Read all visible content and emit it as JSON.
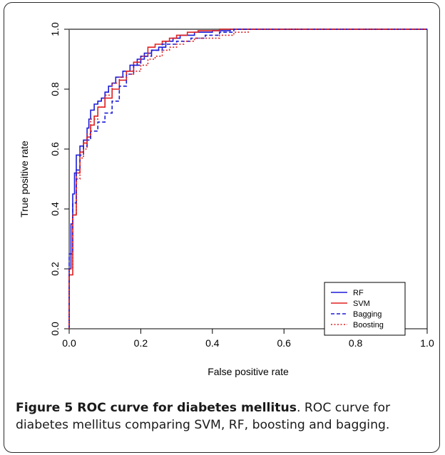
{
  "chart_data": {
    "type": "line",
    "title": "",
    "xlabel": "False positive rate",
    "ylabel": "True positive rate",
    "xlim": [
      0,
      1
    ],
    "ylim": [
      0,
      1
    ],
    "xticks": [
      "0.0",
      "0.2",
      "0.4",
      "0.6",
      "0.8",
      "1.0"
    ],
    "yticks": [
      "0.0",
      "0.2",
      "0.4",
      "0.6",
      "0.8",
      "1.0"
    ],
    "grid": false,
    "legend_position": "bottom-right",
    "series": [
      {
        "name": "RF",
        "color": "#1c1cd8",
        "dash": "solid",
        "points": [
          [
            0,
            0
          ],
          [
            0.005,
            0.2
          ],
          [
            0.01,
            0.35
          ],
          [
            0.015,
            0.45
          ],
          [
            0.02,
            0.52
          ],
          [
            0.03,
            0.58
          ],
          [
            0.04,
            0.61
          ],
          [
            0.05,
            0.63
          ],
          [
            0.055,
            0.67
          ],
          [
            0.06,
            0.7
          ],
          [
            0.07,
            0.73
          ],
          [
            0.08,
            0.75
          ],
          [
            0.09,
            0.76
          ],
          [
            0.1,
            0.77
          ],
          [
            0.11,
            0.79
          ],
          [
            0.12,
            0.81
          ],
          [
            0.13,
            0.82
          ],
          [
            0.15,
            0.84
          ],
          [
            0.17,
            0.86
          ],
          [
            0.19,
            0.88
          ],
          [
            0.21,
            0.9
          ],
          [
            0.23,
            0.92
          ],
          [
            0.25,
            0.93
          ],
          [
            0.27,
            0.94
          ],
          [
            0.29,
            0.96
          ],
          [
            0.31,
            0.97
          ],
          [
            0.35,
            0.98
          ],
          [
            0.4,
            0.99
          ],
          [
            0.45,
            0.995
          ],
          [
            0.5,
            1.0
          ],
          [
            1.0,
            1.0
          ]
        ]
      },
      {
        "name": "SVM",
        "color": "#e02020",
        "dash": "solid",
        "points": [
          [
            0,
            0
          ],
          [
            0.01,
            0.18
          ],
          [
            0.02,
            0.38
          ],
          [
            0.03,
            0.52
          ],
          [
            0.04,
            0.59
          ],
          [
            0.05,
            0.62
          ],
          [
            0.06,
            0.64
          ],
          [
            0.07,
            0.68
          ],
          [
            0.08,
            0.71
          ],
          [
            0.1,
            0.74
          ],
          [
            0.12,
            0.77
          ],
          [
            0.14,
            0.8
          ],
          [
            0.16,
            0.83
          ],
          [
            0.18,
            0.86
          ],
          [
            0.2,
            0.89
          ],
          [
            0.22,
            0.91
          ],
          [
            0.24,
            0.94
          ],
          [
            0.26,
            0.95
          ],
          [
            0.28,
            0.96
          ],
          [
            0.3,
            0.97
          ],
          [
            0.33,
            0.98
          ],
          [
            0.36,
            0.99
          ],
          [
            0.42,
            0.995
          ],
          [
            0.5,
            1.0
          ],
          [
            1.0,
            1.0
          ]
        ]
      },
      {
        "name": "Bagging",
        "color": "#1c1cd8",
        "dash": "dashed",
        "points": [
          [
            0,
            0
          ],
          [
            0.01,
            0.25
          ],
          [
            0.02,
            0.42
          ],
          [
            0.03,
            0.53
          ],
          [
            0.04,
            0.58
          ],
          [
            0.05,
            0.61
          ],
          [
            0.06,
            0.63
          ],
          [
            0.08,
            0.66
          ],
          [
            0.1,
            0.69
          ],
          [
            0.12,
            0.72
          ],
          [
            0.14,
            0.76
          ],
          [
            0.16,
            0.81
          ],
          [
            0.18,
            0.85
          ],
          [
            0.2,
            0.88
          ],
          [
            0.23,
            0.91
          ],
          [
            0.26,
            0.93
          ],
          [
            0.3,
            0.95
          ],
          [
            0.34,
            0.96
          ],
          [
            0.38,
            0.97
          ],
          [
            0.42,
            0.98
          ],
          [
            0.46,
            0.99
          ],
          [
            0.5,
            1.0
          ],
          [
            1.0,
            1.0
          ]
        ]
      },
      {
        "name": "Boosting",
        "color": "#e02020",
        "dash": "dotted",
        "points": [
          [
            0,
            0
          ],
          [
            0.01,
            0.2
          ],
          [
            0.02,
            0.38
          ],
          [
            0.03,
            0.5
          ],
          [
            0.04,
            0.57
          ],
          [
            0.05,
            0.6
          ],
          [
            0.06,
            0.65
          ],
          [
            0.08,
            0.7
          ],
          [
            0.1,
            0.74
          ],
          [
            0.12,
            0.78
          ],
          [
            0.14,
            0.82
          ],
          [
            0.16,
            0.84
          ],
          [
            0.18,
            0.85
          ],
          [
            0.2,
            0.86
          ],
          [
            0.22,
            0.88
          ],
          [
            0.24,
            0.9
          ],
          [
            0.26,
            0.91
          ],
          [
            0.28,
            0.93
          ],
          [
            0.3,
            0.94
          ],
          [
            0.32,
            0.95
          ],
          [
            0.35,
            0.96
          ],
          [
            0.38,
            0.97
          ],
          [
            0.42,
            0.97
          ],
          [
            0.46,
            0.98
          ],
          [
            0.5,
            0.99
          ],
          [
            0.53,
            1.0
          ],
          [
            1.0,
            1.0
          ]
        ]
      }
    ]
  },
  "caption": {
    "lead": "Figure 5 ROC curve for diabetes mellitus",
    "rest": ". ROC curve for diabetes mellitus comparing SVM, RF, boosting and bagging."
  }
}
